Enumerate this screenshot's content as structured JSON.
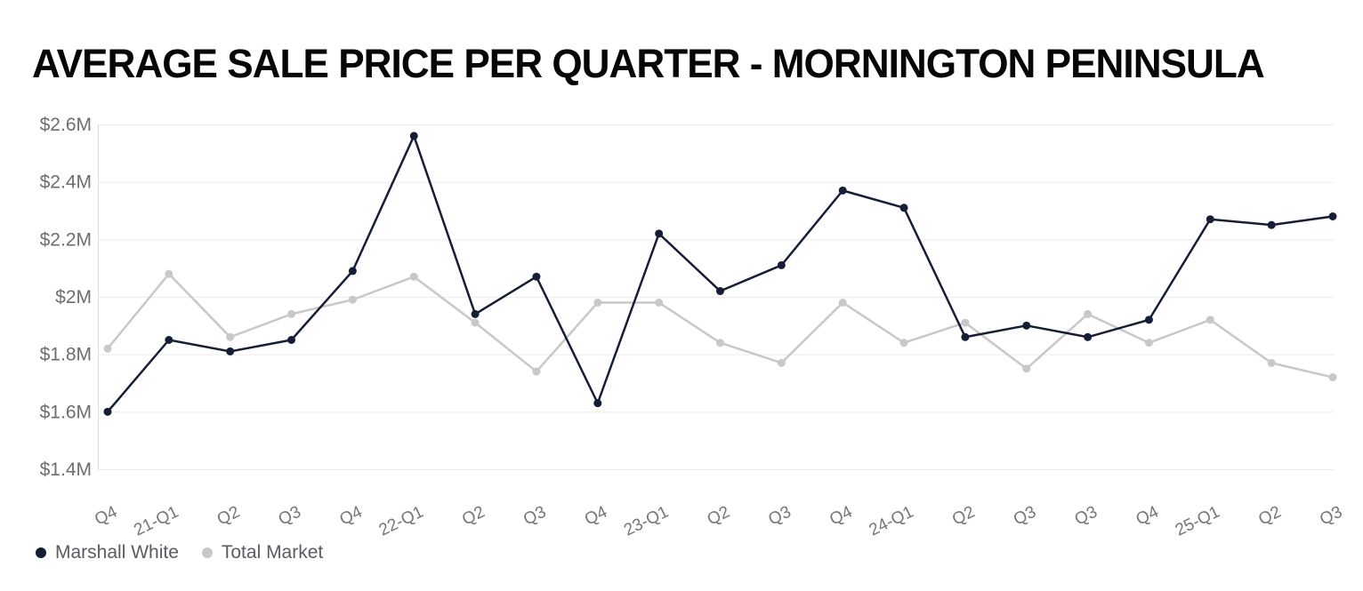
{
  "page": {
    "background": "#ffffff"
  },
  "chart_data": {
    "type": "line",
    "title": "AVERAGE SALE PRICE PER QUARTER - MORNINGTON PENINSULA",
    "categories": [
      "Q4",
      "21-Q1",
      "Q2",
      "Q3",
      "Q4",
      "22-Q1",
      "Q2",
      "Q3",
      "Q4",
      "23-Q1",
      "Q2",
      "Q3",
      "Q4",
      "24-Q1",
      "Q2",
      "Q3",
      "Q3",
      "Q4",
      "25-Q1",
      "Q2",
      "Q3"
    ],
    "y_ticks": [
      "$2.6M",
      "$2.4M",
      "$2.2M",
      "$2M",
      "$1.8M",
      "$1.6M",
      "$1.4M"
    ],
    "y_tick_values": [
      2.6,
      2.4,
      2.2,
      2.0,
      1.8,
      1.6,
      1.4
    ],
    "ylim": [
      1.4,
      2.6
    ],
    "unit": "million dollars",
    "grid": "horizontal",
    "legend_position": "bottom-left",
    "colors": {
      "grid": "#ececec",
      "axis_line": "#dcdcdc",
      "tick_text": "#767676"
    },
    "series": [
      {
        "name": "Marshall White",
        "color": "#151e36",
        "values": [
          1.6,
          1.85,
          1.81,
          1.85,
          2.09,
          2.56,
          1.94,
          2.07,
          1.63,
          2.22,
          2.02,
          2.11,
          2.37,
          2.31,
          1.86,
          1.9,
          1.86,
          1.92,
          2.27,
          2.25,
          2.28
        ]
      },
      {
        "name": "Total Market",
        "color": "#c8c8c8",
        "values": [
          1.82,
          2.08,
          1.86,
          1.94,
          1.99,
          2.07,
          1.91,
          1.74,
          1.98,
          1.98,
          1.84,
          1.77,
          1.98,
          1.84,
          1.91,
          1.75,
          1.94,
          1.84,
          1.92,
          1.77,
          1.72
        ]
      }
    ]
  }
}
